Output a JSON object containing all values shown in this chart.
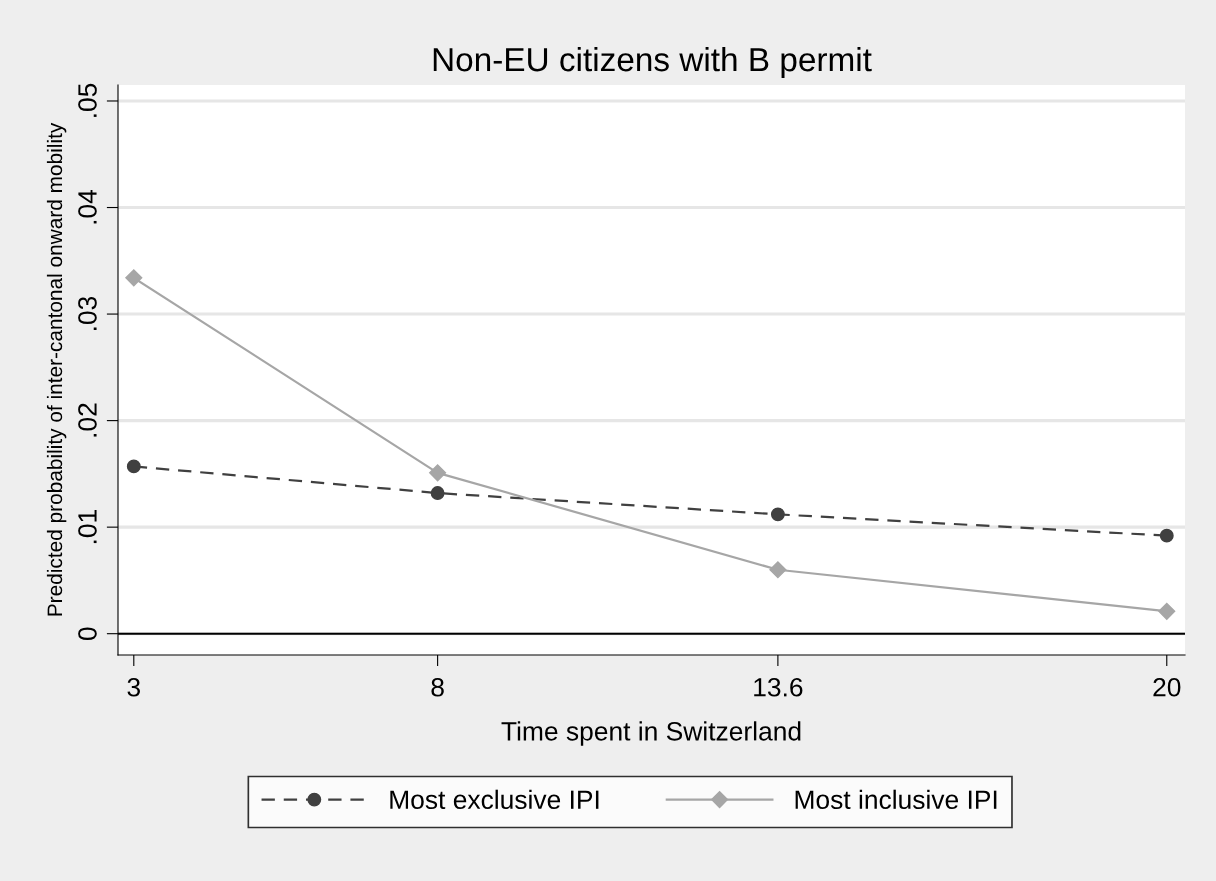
{
  "chart_data": {
    "type": "line",
    "title": "Non-EU citizens with B permit",
    "xlabel": "Time spent in Switzerland",
    "ylabel": "Predicted probability of inter-cantonal onward mobility",
    "x": [
      3,
      8,
      13.6,
      20
    ],
    "series": [
      {
        "name": "Most exclusive IPI",
        "color": "#404040",
        "values": [
          0.0157,
          0.0132,
          0.0112,
          0.0092
        ],
        "marker": "circle",
        "line_style": "dashed"
      },
      {
        "name": "Most inclusive IPI",
        "color": "#a6a6a6",
        "values": [
          0.0334,
          0.0151,
          0.006,
          0.0021
        ],
        "marker": "diamond",
        "line_style": "solid"
      }
    ],
    "xlim": [
      2.74,
      20.3
    ],
    "xticks": [
      3,
      8,
      13.6,
      20
    ],
    "ylim": [
      -0.002,
      0.0515
    ],
    "yticks": [
      {
        "value": 0,
        "label": "0"
      },
      {
        "value": 0.01,
        "label": ".01"
      },
      {
        "value": 0.02,
        "label": ".02"
      },
      {
        "value": 0.03,
        "label": ".03"
      },
      {
        "value": 0.04,
        "label": ".04"
      },
      {
        "value": 0.05,
        "label": ".05"
      }
    ],
    "ref_lines": [
      {
        "axis": "y",
        "value": 0,
        "color": "#000000"
      }
    ],
    "grid": "y",
    "legend": "bottom"
  }
}
